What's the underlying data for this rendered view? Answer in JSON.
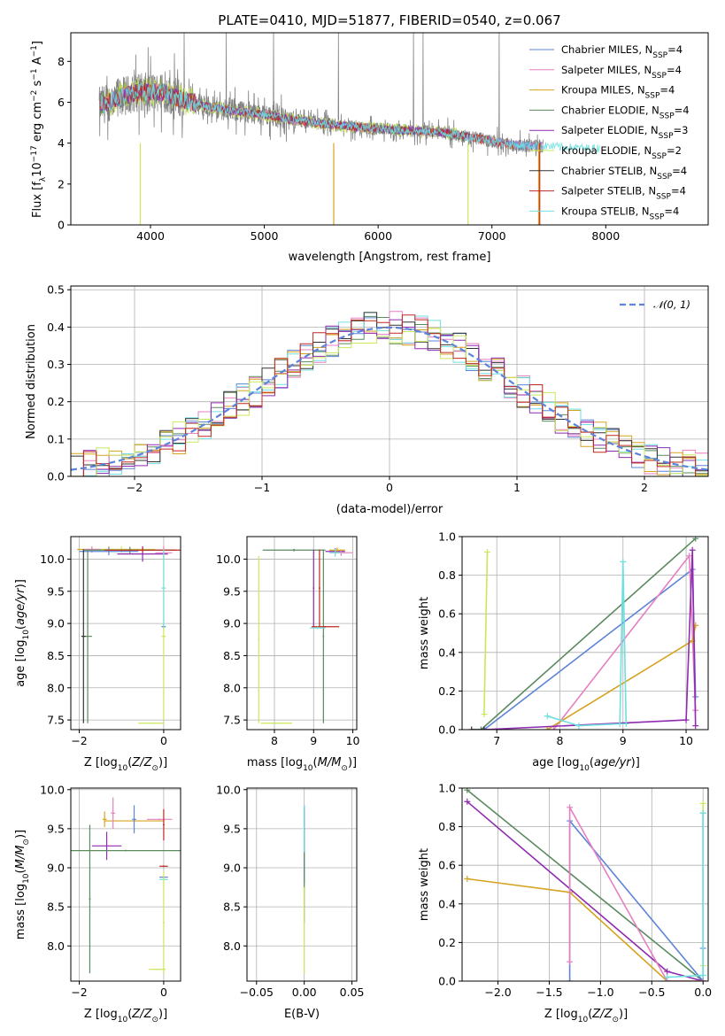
{
  "colors": [
    "#5d84d8",
    "#e77fc1",
    "#d6a31f",
    "#5a8a5e",
    "#8f2bb0",
    "#c9e85a",
    "#333333",
    "#c0281f",
    "#6fdfe0"
  ],
  "chart_data": [
    {
      "id": "spectrum",
      "type": "line",
      "title": "PLATE=0410, MJD=51877, FIBERID=0540, z=0.067",
      "xlabel": "wavelength [Angstrom, rest frame]",
      "ylabel": "Flux [f",
      "ylabel_full": "Flux [f_λ 10^-17 erg cm^-2 s^-1 A^-1]",
      "xlim": [
        3300,
        8900
      ],
      "ylim": [
        0,
        9.4
      ],
      "xticks": [
        4000,
        5000,
        6000,
        7000,
        8000
      ],
      "yticks": [
        0,
        2,
        4,
        6,
        8
      ],
      "data_color": "#808080",
      "legend": [
        {
          "name": "Chabrier MILES, N",
          "sub": "SSP",
          "suffix": "=4"
        },
        {
          "name": "Salpeter MILES, N",
          "sub": "SSP",
          "suffix": "=4"
        },
        {
          "name": "Kroupa MILES, N",
          "sub": "SSP",
          "suffix": "=4"
        },
        {
          "name": "Chabrier ELODIE, N",
          "sub": "SSP",
          "suffix": "=4"
        },
        {
          "name": "Salpeter ELODIE, N",
          "sub": "SSP",
          "suffix": "=3"
        },
        {
          "name": "Kroupa ELODIE, N",
          "sub": "SSP",
          "suffix": "=2"
        },
        {
          "name": "Chabrier STELIB, N",
          "sub": "SSP",
          "suffix": "=4"
        },
        {
          "name": "Salpeter STELIB, N",
          "sub": "SSP",
          "suffix": "=4"
        },
        {
          "name": "Kroupa STELIB, N",
          "sub": "SSP",
          "suffix": "=4"
        }
      ],
      "continuum": {
        "x": [
          3550,
          3700,
          3900,
          4100,
          4300,
          4500,
          4700,
          5000,
          5300,
          5600,
          6000,
          6300,
          6600,
          6800,
          7000,
          7200,
          7500,
          7800
        ],
        "y": [
          5.8,
          6.2,
          6.5,
          6.5,
          6.1,
          5.8,
          5.6,
          5.4,
          5.1,
          4.9,
          4.7,
          4.6,
          4.5,
          4.3,
          4.1,
          3.9,
          3.85,
          3.75
        ]
      }
    },
    {
      "id": "residuals",
      "type": "histogram",
      "xlabel": "(data-model)/error",
      "ylabel": "Normed distribution",
      "xlim": [
        -2.5,
        2.5
      ],
      "ylim": [
        0,
        0.51
      ],
      "xticks": [
        -2,
        -1,
        0,
        1,
        2
      ],
      "yticks": [
        0.0,
        0.1,
        0.2,
        0.3,
        0.4,
        0.5
      ],
      "xtick_labels": [
        "−2",
        "−1",
        "0",
        "1",
        "2"
      ],
      "ytick_labels": [
        "0.0",
        "0.1",
        "0.2",
        "0.3",
        "0.4",
        "0.5"
      ],
      "legend_label": "𝒩(0, 1)",
      "gaussian_color": "#5d84d8"
    },
    {
      "id": "age-vs-Z",
      "type": "scatter",
      "xlabel": "Z [log",
      "ylabel": "age  [log",
      "xlim": [
        -2.2,
        0.4
      ],
      "ylim": [
        7.35,
        10.35
      ],
      "xticks": [
        -2,
        0
      ],
      "xtick_labels": [
        "−2",
        "0"
      ],
      "yticks": [
        7.5,
        8.0,
        8.5,
        9.0,
        9.5,
        10.0
      ],
      "ytick_labels": [
        "7.5",
        "8.0",
        "8.5",
        "9.0",
        "9.5",
        "10.0"
      ],
      "points": [
        {
          "x": -1.3,
          "y": 10.15,
          "xe": 0.75,
          "ye": 0.05,
          "c": 2
        },
        {
          "x": -1.0,
          "y": 10.15,
          "xe": 0.8,
          "ye": 0.05,
          "c": 5
        },
        {
          "x": -1.7,
          "y": 10.15,
          "xe": 0.2,
          "ye": 0.05,
          "c": 1
        },
        {
          "x": -0.5,
          "y": 10.08,
          "xe": 0.6,
          "ye": 0.12,
          "c": 4
        },
        {
          "x": -1.3,
          "y": 10.12,
          "xe": 0.7,
          "ye": 0.06,
          "c": 0
        },
        {
          "x": -0.8,
          "y": 10.14,
          "xe": 1.1,
          "ye": 0.05,
          "c": 3
        },
        {
          "x": -0.5,
          "y": 10.14,
          "xe": 0.9,
          "ye": 0.04,
          "c": 7
        },
        {
          "x": 0.0,
          "y": 10.1,
          "xe": 0.2,
          "ye": 0.1,
          "c": 1
        },
        {
          "x": 0.0,
          "y": 8.95,
          "xe": 0.05,
          "ye": 0.03,
          "c": 8
        },
        {
          "x": 0.0,
          "y": 8.95,
          "xe": 0.05,
          "ye": 0.03,
          "c": 0
        },
        {
          "x": -0.3,
          "y": 7.45,
          "xe": 0.3,
          "ye": 0.01,
          "c": 5
        },
        {
          "x": 0.0,
          "y": 8.8,
          "xe": 0.05,
          "ye": 1.3,
          "c": 5
        },
        {
          "x": -1.8,
          "y": 8.8,
          "xe": 0.1,
          "ye": 1.35,
          "c": 3
        },
        {
          "x": -1.9,
          "y": 8.8,
          "xe": 0.05,
          "ye": 1.35,
          "c": 6
        },
        {
          "x": 0.0,
          "y": 9.55,
          "xe": 0.05,
          "ye": 0.6,
          "c": 8
        }
      ]
    },
    {
      "id": "age-vs-mass",
      "type": "scatter",
      "xlabel": "mass [log",
      "xlim": [
        7.3,
        10.1
      ],
      "ylim": [
        7.35,
        10.35
      ],
      "xticks": [
        8,
        9,
        10
      ],
      "xtick_labels": [
        "8",
        "9",
        "10"
      ],
      "yticks": [
        7.5,
        8.0,
        8.5,
        9.0,
        9.5,
        10.0
      ],
      "ytick_labels": [
        "7.5",
        "8.0",
        "8.5",
        "9.0",
        "9.5",
        "10.0"
      ],
      "points": [
        {
          "x": 8.05,
          "y": 7.45,
          "xe": 0.4,
          "ye": 0.01,
          "c": 5
        },
        {
          "x": 7.6,
          "y": 8.75,
          "xe": 0.02,
          "ye": 1.3,
          "c": 5
        },
        {
          "x": 8.5,
          "y": 10.14,
          "xe": 0.8,
          "ye": 0.02,
          "c": 3
        },
        {
          "x": 9.25,
          "y": 8.8,
          "xe": 0.02,
          "ye": 1.35,
          "c": 3
        },
        {
          "x": 9.0,
          "y": 9.55,
          "xe": 0.02,
          "ye": 0.6,
          "c": 4
        },
        {
          "x": 9.15,
          "y": 9.55,
          "xe": 0.02,
          "ye": 0.6,
          "c": 7
        },
        {
          "x": 9.3,
          "y": 8.95,
          "xe": 0.35,
          "ye": 0.01,
          "c": 7
        },
        {
          "x": 9.1,
          "y": 8.93,
          "xe": 0.2,
          "ye": 0.02,
          "c": 8
        },
        {
          "x": 9.55,
          "y": 10.12,
          "xe": 0.25,
          "ye": 0.05,
          "c": 4
        },
        {
          "x": 9.7,
          "y": 10.1,
          "xe": 0.3,
          "ye": 0.05,
          "c": 1
        },
        {
          "x": 9.6,
          "y": 10.14,
          "xe": 0.2,
          "ye": 0.04,
          "c": 2
        },
        {
          "x": 9.55,
          "y": 10.1,
          "xe": 0.15,
          "ye": 0.06,
          "c": 8
        }
      ]
    },
    {
      "id": "weight-vs-age",
      "type": "line",
      "xlabel": "age  [log",
      "ylabel": "mass weight",
      "xlim": [
        6.45,
        10.35
      ],
      "ylim": [
        0,
        1.0
      ],
      "xticks": [
        7,
        8,
        9,
        10
      ],
      "xtick_labels": [
        "7",
        "8",
        "9",
        "10"
      ],
      "yticks": [
        0.0,
        0.2,
        0.4,
        0.6,
        0.8,
        1.0
      ],
      "ytick_labels": [
        "0.0",
        "0.2",
        "0.4",
        "0.6",
        "0.8",
        "1.0"
      ],
      "series": [
        {
          "c": 5,
          "x": [
            6.8,
            6.85
          ],
          "y": [
            0.08,
            0.92
          ]
        },
        {
          "c": 3,
          "x": [
            6.75,
            10.15
          ],
          "y": [
            0.0,
            0.99
          ]
        },
        {
          "c": 0,
          "x": [
            6.8,
            10.1,
            10.15
          ],
          "y": [
            0.0,
            0.83,
            0.17
          ]
        },
        {
          "c": 1,
          "x": [
            7.9,
            10.05,
            10.15
          ],
          "y": [
            0.0,
            0.9,
            0.1
          ]
        },
        {
          "c": 2,
          "x": [
            7.8,
            10.1,
            10.15
          ],
          "y": [
            0.0,
            0.46,
            0.54
          ]
        },
        {
          "c": 4,
          "x": [
            6.8,
            10.0,
            10.1,
            10.15
          ],
          "y": [
            0.0,
            0.05,
            0.93,
            0.02
          ]
        },
        {
          "c": 8,
          "x": [
            7.8,
            8.3,
            8.95,
            9.0,
            9.05
          ],
          "y": [
            0.07,
            0.02,
            0.03,
            0.87,
            0.03
          ]
        },
        {
          "c": 6,
          "x": [
            6.6,
            6.8
          ],
          "y": [
            0.0,
            0.0
          ]
        }
      ]
    },
    {
      "id": "mass-vs-Z",
      "type": "scatter",
      "xlabel": "Z [log",
      "ylabel": "mass [log",
      "xlim": [
        -2.2,
        0.4
      ],
      "ylim": [
        7.55,
        10.02
      ],
      "xticks": [
        -2,
        0
      ],
      "xtick_labels": [
        "−2",
        "0"
      ],
      "yticks": [
        8.0,
        8.5,
        9.0,
        9.5,
        10.0
      ],
      "ytick_labels": [
        "8.0",
        "8.5",
        "9.0",
        "9.5",
        "10.0"
      ],
      "points": [
        {
          "x": -1.35,
          "y": 9.28,
          "xe": 0.35,
          "ye": 0.18,
          "c": 4
        },
        {
          "x": -1.4,
          "y": 9.62,
          "xe": 0.05,
          "ye": 0.1,
          "c": 2
        },
        {
          "x": -0.7,
          "y": 9.6,
          "xe": 0.7,
          "ye": 0.01,
          "c": 2
        },
        {
          "x": -1.2,
          "y": 9.7,
          "xe": 0.05,
          "ye": 0.2,
          "c": 1
        },
        {
          "x": -0.7,
          "y": 9.62,
          "xe": 0.05,
          "ye": 0.18,
          "c": 0
        },
        {
          "x": -0.1,
          "y": 9.62,
          "xe": 0.3,
          "ye": 0.01,
          "c": 1
        },
        {
          "x": 0.0,
          "y": 9.55,
          "xe": 0.02,
          "ye": 0.2,
          "c": 7
        },
        {
          "x": 0.0,
          "y": 9.02,
          "xe": 0.1,
          "ye": 0.01,
          "c": 7
        },
        {
          "x": 0.0,
          "y": 8.88,
          "xe": 0.1,
          "ye": 0.01,
          "c": 0
        },
        {
          "x": 0.0,
          "y": 8.85,
          "xe": 0.1,
          "ye": 0.01,
          "c": 8
        },
        {
          "x": -0.9,
          "y": 9.22,
          "xe": 1.3,
          "ye": 0.01,
          "c": 3
        },
        {
          "x": -1.75,
          "y": 8.6,
          "xe": 0.02,
          "ye": 0.95,
          "c": 3
        },
        {
          "x": 0.0,
          "y": 8.3,
          "xe": 0.02,
          "ye": 0.65,
          "c": 5
        },
        {
          "x": -0.15,
          "y": 7.7,
          "xe": 0.2,
          "ye": 0.01,
          "c": 5
        }
      ]
    },
    {
      "id": "mass-vs-EBV",
      "type": "scatter",
      "xlabel": "E(B-V)",
      "xlim": [
        -0.06,
        0.055
      ],
      "ylim": [
        7.55,
        10.02
      ],
      "xticks": [
        -0.05,
        0.0,
        0.05
      ],
      "xtick_labels": [
        "−0.05",
        "0.00",
        "0.05"
      ],
      "yticks": [
        8.0,
        8.5,
        9.0,
        9.5,
        10.0
      ],
      "ytick_labels": [
        "8.0",
        "8.5",
        "9.0",
        "9.5",
        "10.0"
      ],
      "points": [
        {
          "x": 0.0,
          "y": 9.6,
          "xe": 0.0,
          "ye": 0.15,
          "c": 7
        },
        {
          "x": 0.0,
          "y": 9.3,
          "xe": 0.0,
          "ye": 0.5,
          "c": 0
        },
        {
          "x": 0.0,
          "y": 8.9,
          "xe": 0.0,
          "ye": 0.6,
          "c": 3
        },
        {
          "x": 0.0,
          "y": 8.2,
          "xe": 0.0,
          "ye": 0.55,
          "c": 5
        },
        {
          "x": 0.0,
          "y": 9.5,
          "xe": 0.0,
          "ye": 0.3,
          "c": 8
        }
      ]
    },
    {
      "id": "weight-vs-Z",
      "type": "line",
      "xlabel": "Z [log",
      "ylabel": "mass weight",
      "xlim": [
        -2.35,
        0.05
      ],
      "ylim": [
        0,
        1.0
      ],
      "xticks": [
        -2.0,
        -1.5,
        -1.0,
        -0.5,
        0.0
      ],
      "xtick_labels": [
        "−2.0",
        "−1.5",
        "−1.0",
        "−0.5",
        "0.0"
      ],
      "yticks": [
        0.0,
        0.2,
        0.4,
        0.6,
        0.8,
        1.0
      ],
      "ytick_labels": [
        "0.0",
        "0.2",
        "0.4",
        "0.6",
        "0.8",
        "1.0"
      ],
      "series": [
        {
          "c": 3,
          "x": [
            -2.3,
            0.0
          ],
          "y": [
            0.99,
            0.0
          ]
        },
        {
          "c": 4,
          "x": [
            -2.3,
            -0.35,
            0.0
          ],
          "y": [
            0.93,
            0.05,
            0.0
          ]
        },
        {
          "c": 2,
          "x": [
            -2.3,
            -1.3,
            -0.35,
            0.0
          ],
          "y": [
            0.53,
            0.46,
            0.0,
            0.0
          ]
        },
        {
          "c": 0,
          "x": [
            -1.3,
            -1.3,
            0.0,
            0.0,
            0.0
          ],
          "y": [
            0.0,
            0.83,
            0.0,
            0.17,
            0.87
          ]
        },
        {
          "c": 1,
          "x": [
            -1.3,
            -1.3,
            -0.35,
            0.0
          ],
          "y": [
            0.1,
            0.9,
            0.0,
            0.0
          ]
        },
        {
          "c": 5,
          "x": [
            0.0,
            0.0
          ],
          "y": [
            0.08,
            0.92
          ]
        },
        {
          "c": 8,
          "x": [
            -0.35,
            0.0,
            0.0,
            0.0
          ],
          "y": [
            0.02,
            0.03,
            0.87,
            0.03
          ]
        }
      ]
    }
  ]
}
